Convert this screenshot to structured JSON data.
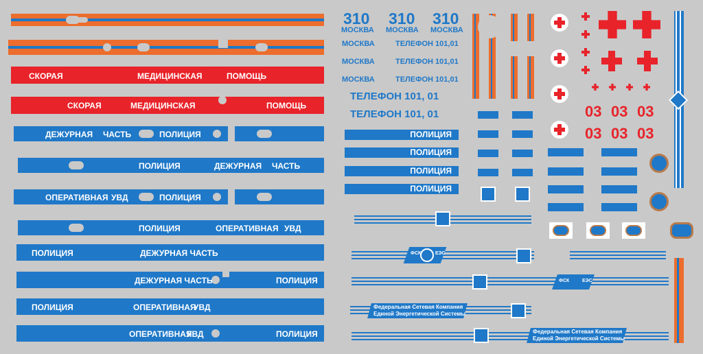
{
  "colors": {
    "background": "#c9c9c9",
    "blue": "#1f78c8",
    "red": "#e8232a",
    "orange": "#ec6d2d",
    "white": "#ffffff"
  },
  "ambulance": {
    "line1": [
      "СКОРАЯ",
      "МЕДИЦИНСКАЯ",
      "ПОМОЩЬ"
    ],
    "line2": [
      "СКОРАЯ",
      "МЕДИЦИНСКАЯ",
      "ПОМОЩЬ"
    ]
  },
  "police_stripes": {
    "s1": [
      "ДЕЖУРНАЯ",
      "ЧАСТЬ",
      "ПОЛИЦИЯ"
    ],
    "s2": [
      "ПОЛИЦИЯ",
      "ДЕЖУРНАЯ",
      "ЧАСТЬ"
    ],
    "s3": [
      "ОПЕРАТИВНАЯ",
      "УВД",
      "ПОЛИЦИЯ"
    ],
    "s4": [
      "ПОЛИЦИЯ",
      "ОПЕРАТИВНАЯ",
      "УВД"
    ],
    "s5": [
      "ПОЛИЦИЯ",
      "ДЕЖУРНАЯ ЧАСТЬ"
    ],
    "s6": [
      "ДЕЖУРНАЯ ЧАСТЬ",
      "ПОЛИЦИЯ"
    ],
    "s7": [
      "ПОЛИЦИЯ",
      "ОПЕРАТИВНАЯ",
      "УВД"
    ],
    "s8": [
      "ОПЕРАТИВНАЯ",
      "УВД",
      "ПОЛИЦИЯ"
    ]
  },
  "moscow": {
    "numbers": [
      "310",
      "310",
      "310"
    ],
    "city": [
      "МОСКВА",
      "МОСКВА",
      "МОСКВА"
    ],
    "rows": [
      [
        "МОСКВА",
        "ТЕЛЕФОН 101,01"
      ],
      [
        "МОСКВА",
        "ТЕЛЕФОН 101,01"
      ],
      [
        "МОСКВА",
        "ТЕЛЕФОН 101,01"
      ]
    ],
    "phone_big": [
      "ТЕЛЕФОН 101, 01",
      "ТЕЛЕФОН 101, 01"
    ]
  },
  "police_labels": [
    "ПОЛИЦИЯ",
    "ПОЛИЦИЯ",
    "ПОЛИЦИЯ",
    "ПОЛИЦИЯ"
  ],
  "emergency_numbers": [
    "03",
    "03",
    "03",
    "03",
    "03",
    "03"
  ],
  "fsk": {
    "logo_left": "ФСК",
    "logo_right": "ЕЭС",
    "full_name_line1": "Федеральная Сетевая Компания",
    "full_name_line2": "Единой Энергетической Системы"
  }
}
